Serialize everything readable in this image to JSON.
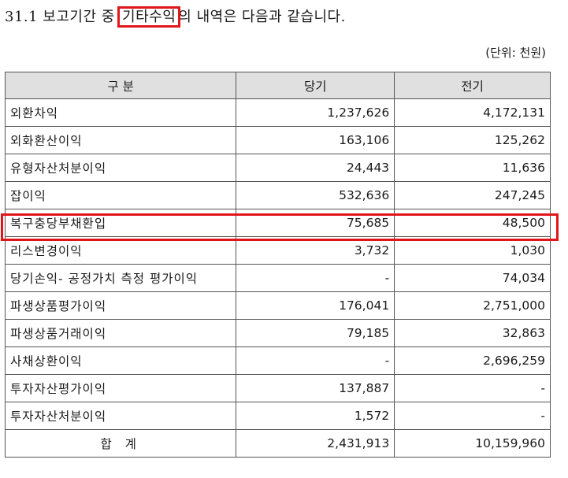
{
  "heading": {
    "prefix": "31.1 보고기간 중 ",
    "highlight": "기타수익",
    "suffix": "의 내역은 다음과 같습니다."
  },
  "unit_note": "(단위: 천원)",
  "table": {
    "headers": [
      "구 분",
      "당기",
      "전기"
    ],
    "rows": [
      {
        "label": "외환차익",
        "current": "1,237,626",
        "prior": "4,172,131"
      },
      {
        "label": "외화환산이익",
        "current": "163,106",
        "prior": "125,262"
      },
      {
        "label": "유형자산처분이익",
        "current": "24,443",
        "prior": "11,636"
      },
      {
        "label": "잡이익",
        "current": "532,636",
        "prior": "247,245"
      },
      {
        "label": "복구충당부채환입",
        "current": "75,685",
        "prior": "48,500"
      },
      {
        "label": "리스변경이익",
        "current": "3,732",
        "prior": "1,030"
      },
      {
        "label": "당기손익- 공정가치 측정 평가이익",
        "current": "-",
        "prior": "74,034"
      },
      {
        "label": "파생상품평가이익",
        "current": "176,041",
        "prior": "2,751,000"
      },
      {
        "label": "파생상품거래이익",
        "current": "79,185",
        "prior": "32,863"
      },
      {
        "label": "사채상환이익",
        "current": "-",
        "prior": "2,696,259"
      },
      {
        "label": "투자자산평가이익",
        "current": "137,887",
        "prior": "-"
      },
      {
        "label": "투자자산처분이익",
        "current": "1,572",
        "prior": "-"
      }
    ],
    "total": {
      "label": "합 계",
      "current": "2,431,913",
      "prior": "10,159,960"
    }
  },
  "colors": {
    "highlight_border": "#e0161b",
    "header_bg": "#e0e0e0"
  }
}
